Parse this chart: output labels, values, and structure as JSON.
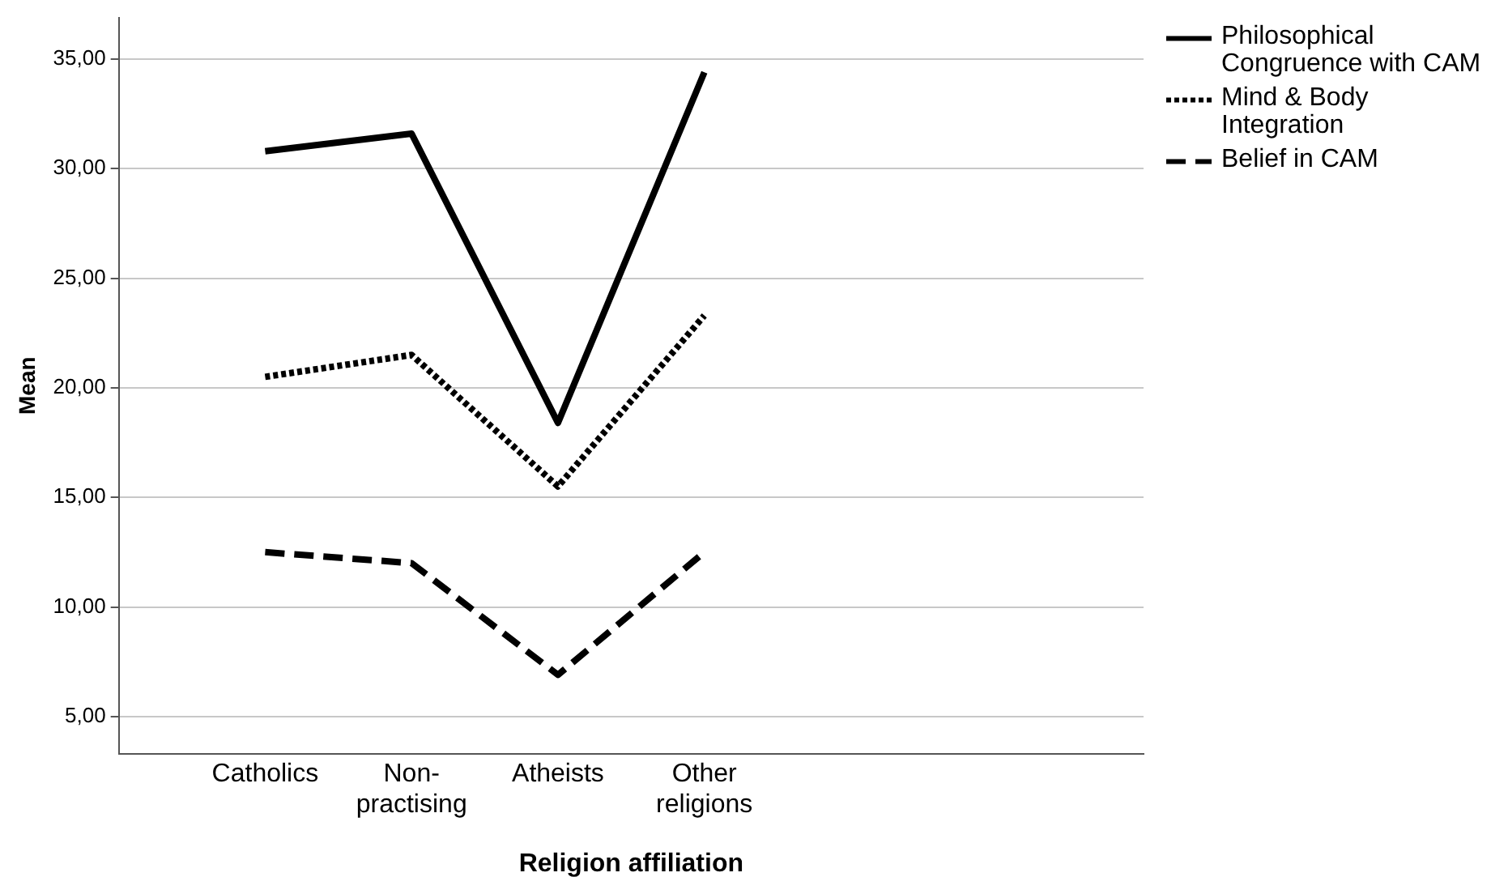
{
  "chart_data": {
    "type": "line",
    "xlabel": "Religion affiliation",
    "ylabel": "Mean",
    "categories": [
      "Catholics",
      "Non-practising",
      "Atheists",
      "Other religions"
    ],
    "series": [
      {
        "name": "Philosophical Congruence with CAM",
        "color": "#000000",
        "line_style": "solid",
        "values": [
          30.8,
          31.6,
          18.4,
          34.4
        ]
      },
      {
        "name": "Mind & Body Integration",
        "color": "#000000",
        "line_style": "dotted",
        "values": [
          20.5,
          21.5,
          15.5,
          23.3
        ]
      },
      {
        "name": "Belief in CAM",
        "color": "#000000",
        "line_style": "dashed",
        "values": [
          12.5,
          12.0,
          6.9,
          12.5
        ]
      }
    ],
    "ylim": [
      3.3,
      36.9
    ],
    "yticks": [
      {
        "value": 5,
        "label": "5,00"
      },
      {
        "value": 10,
        "label": "10,00"
      },
      {
        "value": 15,
        "label": "15,00"
      },
      {
        "value": 20,
        "label": "20,00"
      },
      {
        "value": 25,
        "label": "25,00"
      },
      {
        "value": 30,
        "label": "30,00"
      },
      {
        "value": 35,
        "label": "35,00"
      }
    ],
    "grid": "y",
    "legend": "top right",
    "marker": "none"
  }
}
